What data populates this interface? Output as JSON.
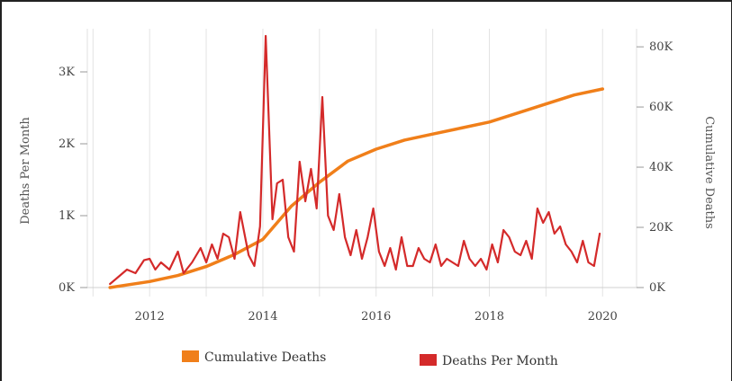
{
  "chart_data": {
    "type": "line",
    "ylabel_left": "Deaths Per Month",
    "ylabel_right": "Cumulative Deaths",
    "xlabel": "",
    "x_ticks": [
      "2012",
      "2014",
      "2016",
      "2018",
      "2020"
    ],
    "y_left_ticks": [
      "0K",
      "1K",
      "2K",
      "3K"
    ],
    "y_right_ticks": [
      "0K",
      "20K",
      "40K",
      "60K",
      "80K"
    ],
    "ylim_left": [
      0,
      3600
    ],
    "ylim_right": [
      0,
      86000
    ],
    "xlim": [
      2010.9,
      2020.6
    ],
    "grid": "vertical gridlines",
    "legend_placement": "bottom",
    "series": [
      {
        "name": "Cumulative Deaths",
        "axis": "right",
        "color": "#f07f1a",
        "x": [
          2011.3,
          2012.0,
          2012.5,
          2013.0,
          2013.5,
          2014.0,
          2014.5,
          2015.0,
          2015.5,
          2016.0,
          2016.5,
          2017.0,
          2017.5,
          2018.0,
          2018.5,
          2019.0,
          2019.5,
          2020.0
        ],
        "values": [
          0,
          2000,
          4000,
          7000,
          11000,
          16000,
          27000,
          35000,
          42000,
          46000,
          49000,
          51000,
          53000,
          55000,
          58000,
          61000,
          64000,
          66000
        ]
      },
      {
        "name": "Deaths Per Month",
        "axis": "left",
        "color": "#d42a2a",
        "x": [
          2011.3,
          2011.45,
          2011.6,
          2011.75,
          2011.9,
          2012.0,
          2012.1,
          2012.2,
          2012.35,
          2012.5,
          2012.6,
          2012.75,
          2012.9,
          2013.0,
          2013.1,
          2013.2,
          2013.3,
          2013.4,
          2013.5,
          2013.6,
          2013.75,
          2013.85,
          2013.95,
          2014.05,
          2014.17,
          2014.25,
          2014.35,
          2014.45,
          2014.55,
          2014.65,
          2014.75,
          2014.85,
          2014.95,
          2015.05,
          2015.15,
          2015.25,
          2015.35,
          2015.45,
          2015.55,
          2015.65,
          2015.75,
          2015.85,
          2015.95,
          2016.05,
          2016.15,
          2016.25,
          2016.35,
          2016.45,
          2016.55,
          2016.65,
          2016.75,
          2016.85,
          2016.95,
          2017.05,
          2017.15,
          2017.25,
          2017.35,
          2017.45,
          2017.55,
          2017.65,
          2017.75,
          2017.85,
          2017.95,
          2018.05,
          2018.15,
          2018.25,
          2018.35,
          2018.45,
          2018.55,
          2018.65,
          2018.75,
          2018.85,
          2018.95,
          2019.05,
          2019.15,
          2019.25,
          2019.35,
          2019.45,
          2019.55,
          2019.65,
          2019.75,
          2019.85,
          2019.95
        ],
        "values": [
          50,
          150,
          250,
          200,
          380,
          400,
          250,
          350,
          250,
          500,
          200,
          350,
          550,
          350,
          600,
          400,
          750,
          700,
          400,
          1050,
          450,
          300,
          850,
          3500,
          950,
          1450,
          1500,
          700,
          500,
          1750,
          1200,
          1650,
          1100,
          2650,
          1000,
          800,
          1300,
          700,
          450,
          800,
          400,
          700,
          1100,
          500,
          300,
          550,
          250,
          700,
          300,
          300,
          550,
          400,
          350,
          600,
          300,
          400,
          350,
          300,
          650,
          400,
          300,
          400,
          250,
          600,
          350,
          800,
          700,
          500,
          450,
          650,
          400,
          1100,
          900,
          1050,
          750,
          850,
          600,
          500,
          350,
          650,
          350,
          300,
          750
        ]
      }
    ]
  }
}
